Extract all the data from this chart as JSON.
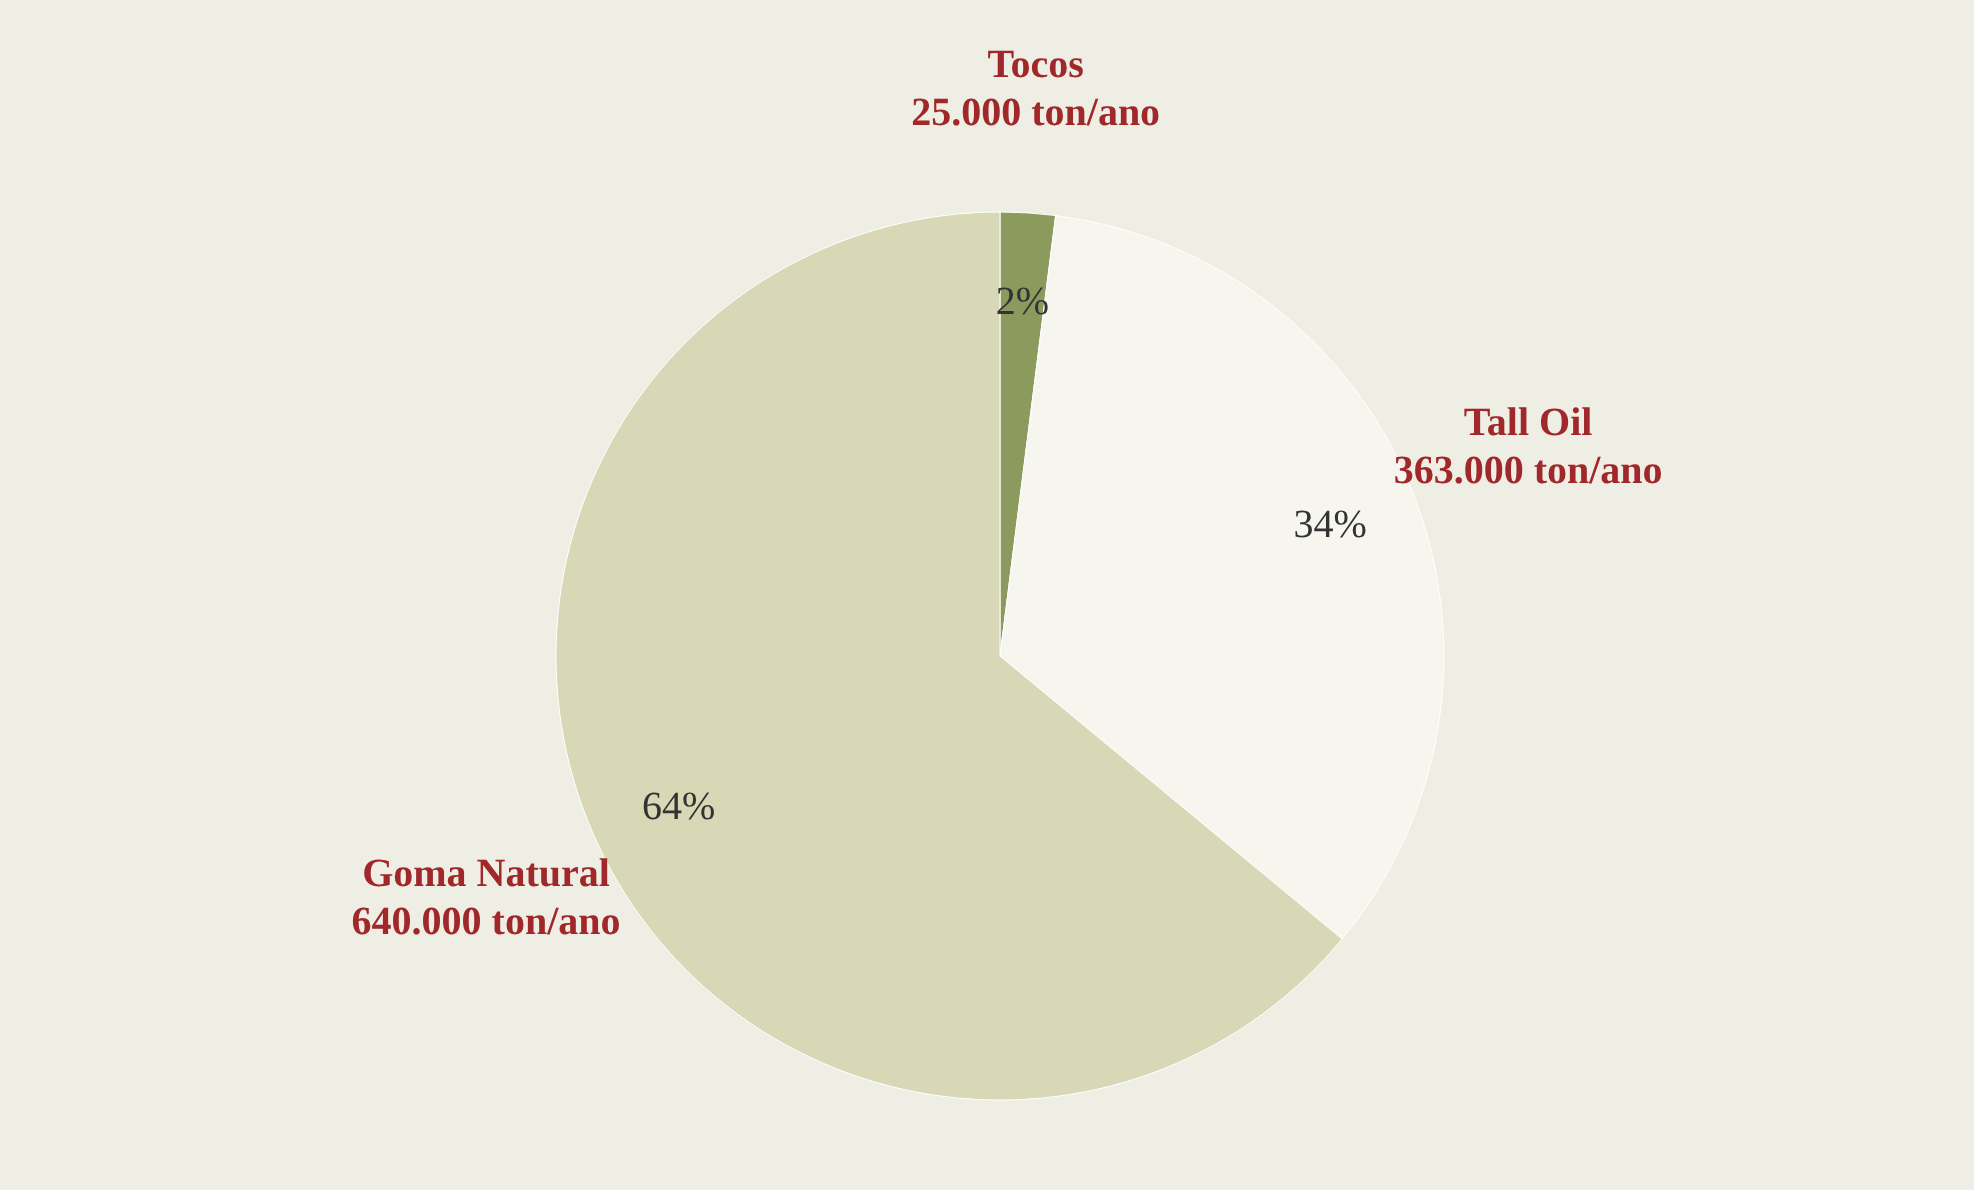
{
  "chart_data": {
    "type": "pie",
    "categories": [
      "Tocos",
      "Tall Oil",
      "Goma Natural"
    ],
    "values": [
      2,
      34,
      64
    ],
    "colors": [
      "#8c9a5e",
      "#f6f5ee",
      "#d8d7b6"
    ],
    "value_labels": [
      "2%",
      "34%",
      "64%"
    ],
    "annotations": [
      "25.000 ton/ano",
      "363.000 ton/ano",
      "640.000 ton/ano"
    ]
  }
}
